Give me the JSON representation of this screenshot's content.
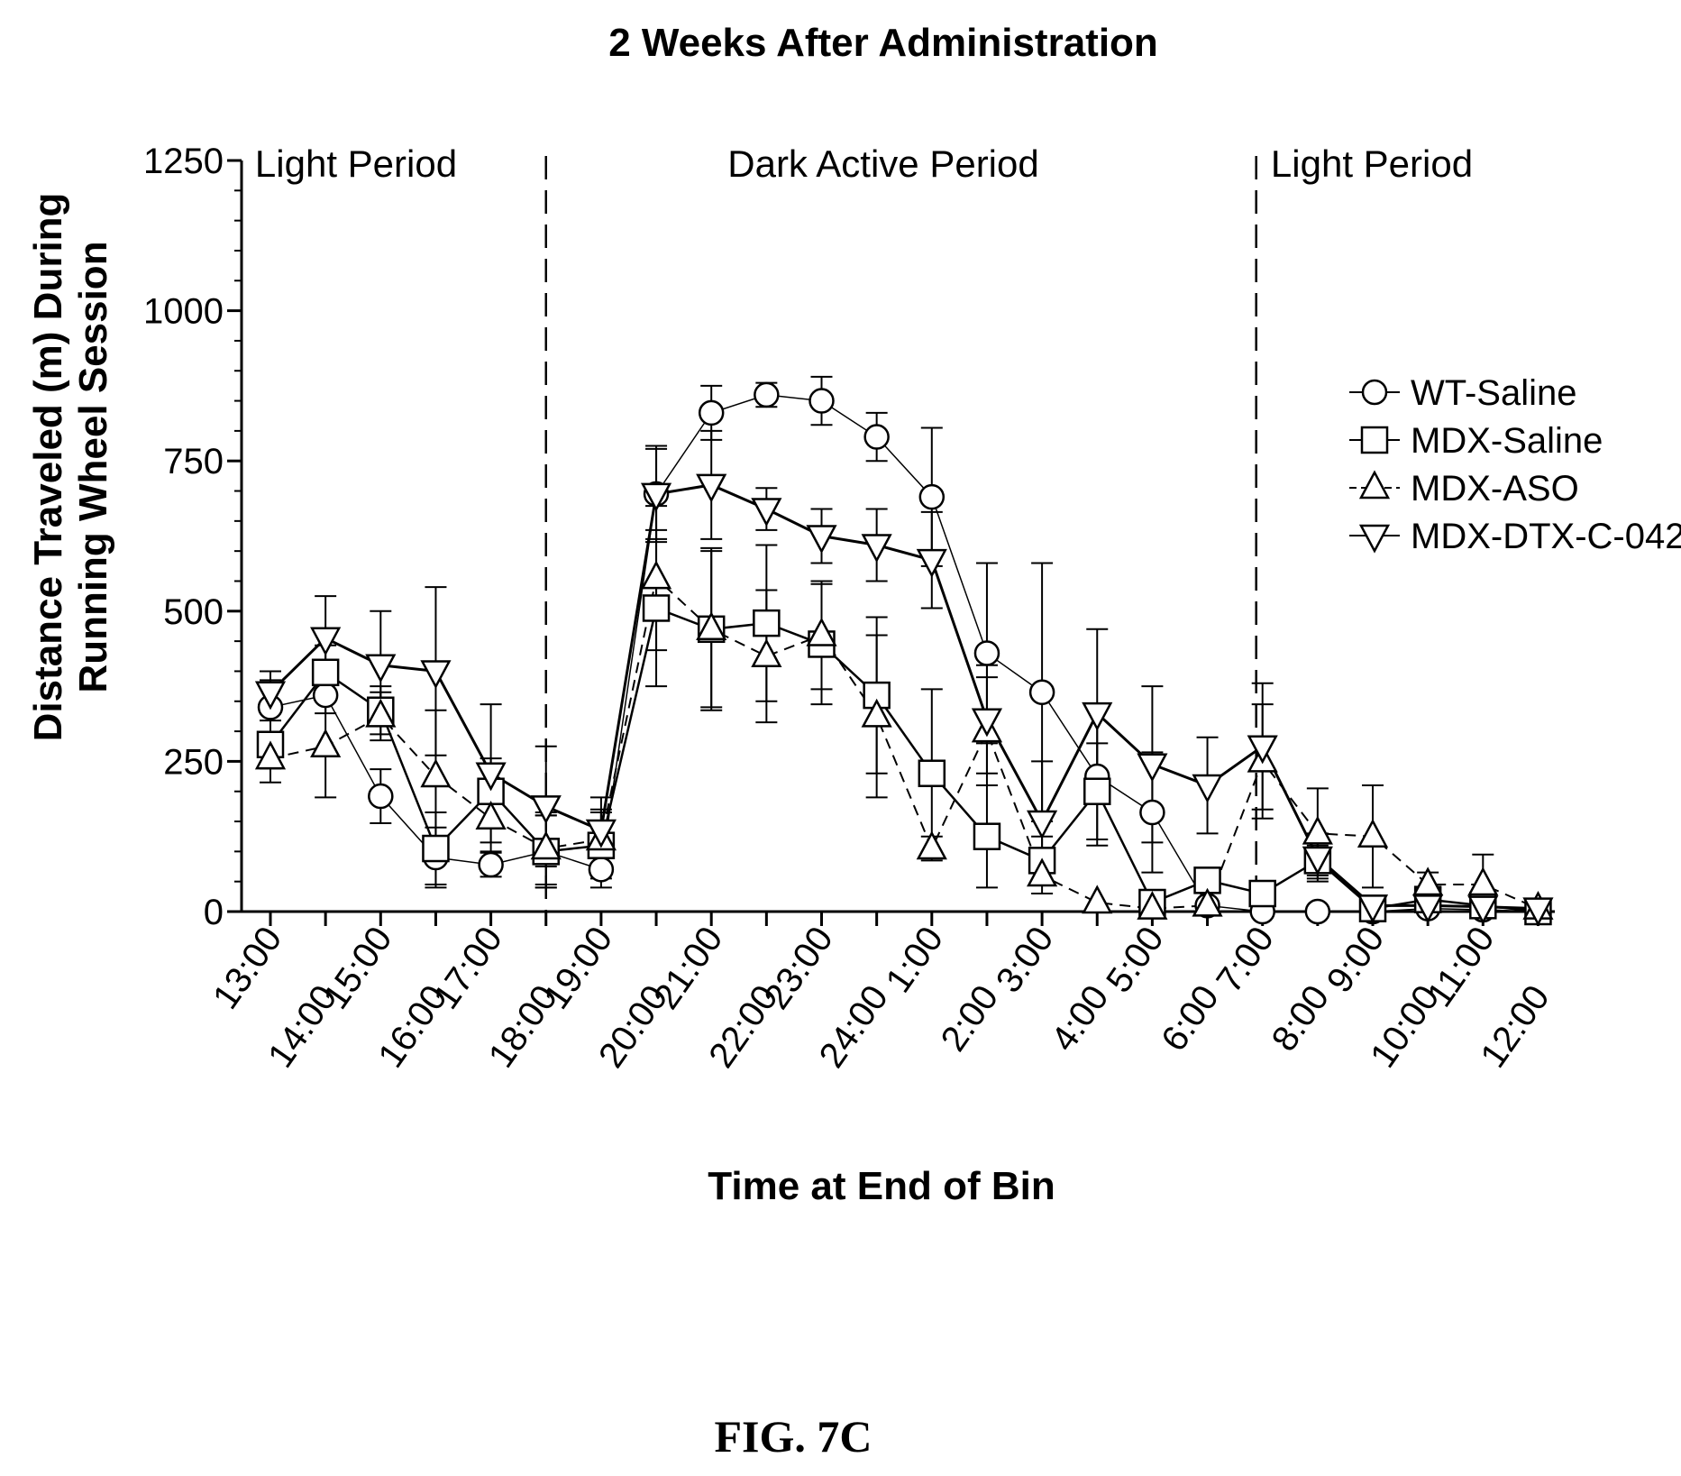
{
  "figure_label": "FIG. 7C",
  "chart_data": {
    "type": "line",
    "title": "2 Weeks After Administration",
    "xlabel": "Time at End of Bin",
    "ylabel": [
      "Distance Traveled (m) During",
      "Running Wheel Session"
    ],
    "ylim": [
      0,
      1250
    ],
    "yticks": [
      0,
      250,
      500,
      750,
      1000,
      1250
    ],
    "categories": [
      "13:00",
      "14:00",
      "15:00",
      "16:00",
      "17:00",
      "18:00",
      "19:00",
      "20:00",
      "21:00",
      "22:00",
      "23:00",
      "24:00",
      "1:00",
      "2:00",
      "3:00",
      "4:00",
      "5:00",
      "6:00",
      "7:00",
      "8:00",
      "9:00",
      "10:00",
      "11:00",
      "12:00"
    ],
    "period_labels": [
      "Light Period",
      "Dark Active Period",
      "Light Period"
    ],
    "period_dividers_after_category": [
      "18:00",
      "7:00"
    ],
    "grid": false,
    "legend_position": "right",
    "series": [
      {
        "name": "WT-Saline",
        "marker": "circle",
        "dash": "solid",
        "values": [
          340,
          360,
          192,
          90,
          78,
          100,
          70,
          695,
          830,
          860,
          850,
          790,
          690,
          430,
          365,
          225,
          165,
          10,
          0,
          0,
          0,
          5,
          3,
          0
        ],
        "errors": [
          45,
          30,
          45,
          50,
          20,
          60,
          30,
          80,
          45,
          20,
          40,
          40,
          115,
          150,
          215,
          115,
          100,
          5,
          5,
          5,
          5,
          5,
          5,
          5
        ]
      },
      {
        "name": "MDX-Saline",
        "marker": "square",
        "dash": "solid",
        "values": [
          278,
          398,
          335,
          105,
          200,
          100,
          110,
          505,
          470,
          480,
          445,
          360,
          230,
          125,
          85,
          200,
          15,
          52,
          30,
          85,
          5,
          20,
          10,
          0
        ],
        "errors": [
          40,
          45,
          40,
          60,
          55,
          60,
          55,
          130,
          130,
          130,
          100,
          130,
          140,
          85,
          40,
          80,
          10,
          15,
          10,
          25,
          5,
          10,
          10,
          5
        ]
      },
      {
        "name": "MDX-ASO",
        "marker": "triangle-up",
        "dash": "dashed",
        "values": [
          255,
          275,
          325,
          225,
          155,
          105,
          120,
          555,
          470,
          425,
          460,
          325,
          105,
          300,
          60,
          15,
          5,
          10,
          250,
          130,
          125,
          45,
          45,
          5
        ],
        "errors": [
          40,
          85,
          40,
          110,
          55,
          60,
          50,
          120,
          135,
          110,
          90,
          135,
          20,
          90,
          30,
          5,
          5,
          5,
          95,
          75,
          85,
          20,
          50,
          5
        ]
      },
      {
        "name": "MDX-DTX-C-042",
        "marker": "triangle-down",
        "dash": "solid",
        "values": [
          365,
          455,
          410,
          400,
          230,
          175,
          135,
          695,
          710,
          670,
          625,
          610,
          585,
          320,
          150,
          330,
          245,
          210,
          275,
          90,
          10,
          10,
          8,
          5
        ],
        "errors": [
          35,
          70,
          90,
          140,
          115,
          100,
          55,
          75,
          90,
          35,
          45,
          60,
          80,
          90,
          100,
          140,
          130,
          80,
          105,
          40,
          5,
          10,
          5,
          5
        ]
      }
    ]
  }
}
